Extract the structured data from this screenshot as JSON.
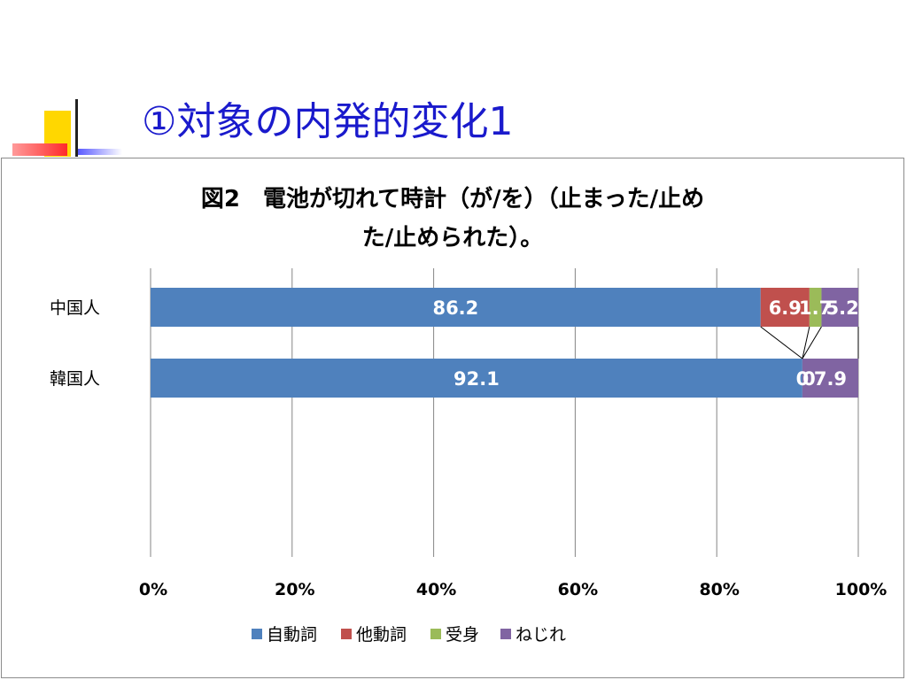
{
  "slide": {
    "title": "①対象の内発的変化1"
  },
  "chart_data": {
    "type": "bar",
    "orientation": "horizontal",
    "stacked": "percent",
    "title_lines": [
      "図2　電池が切れて時計（が/を）（止まった/止め",
      "た/止められた）。"
    ],
    "categories": [
      "中国人",
      "韓国人"
    ],
    "series": [
      {
        "name": "自動詞",
        "color": "#4f81bd",
        "values": [
          86.2,
          92.1
        ]
      },
      {
        "name": "他動詞",
        "color": "#c0504d",
        "values": [
          6.9,
          0
        ]
      },
      {
        "name": "受身",
        "color": "#9bbb59",
        "values": [
          1.7,
          0
        ]
      },
      {
        "name": "ねじれ",
        "color": "#8064a2",
        "values": [
          5.2,
          7.9
        ]
      }
    ],
    "data_labels": [
      [
        "86.2",
        "6.9",
        "1.7",
        "5.2"
      ],
      [
        "92.1",
        "0",
        "0",
        "7.9"
      ]
    ],
    "x_ticks": [
      "0%",
      "20%",
      "40%",
      "60%",
      "80%",
      "100%"
    ],
    "xlim": [
      0,
      100
    ],
    "grid": true,
    "legend_position": "bottom"
  }
}
